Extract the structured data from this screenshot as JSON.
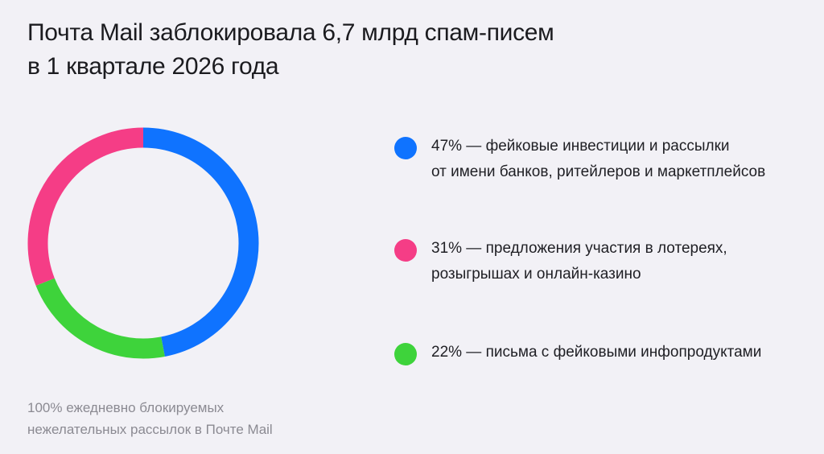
{
  "title": {
    "line1": "Почта Mail заблокировала 6,7 млрд спам-писем",
    "line2": "в 1 квартале 2026 года"
  },
  "legend": [
    {
      "line1": "47% — фейковые инвестиции и рассылки",
      "line2": "от имени банков, ритейлеров и маркетплейсов",
      "color": "#0f73ff"
    },
    {
      "line1": "31% — предложения участия в лотереях,",
      "line2": "розыгрышах и онлайн-казино",
      "color": "#f53d86"
    },
    {
      "line1": "22% — письма с фейковыми инфопродуктами",
      "line2": "",
      "color": "#3ed33b"
    }
  ],
  "footnote": {
    "line1": "100% ежедневно блокируемых",
    "line2": "нежелательных рассылок в Почте Mail"
  },
  "chart_data": {
    "type": "pie",
    "variant": "donut",
    "start": "top",
    "direction": "clockwise",
    "categories": [
      "фейковые инвестиции и рассылки от имени банков, ритейлеров и маркетплейсов",
      "предложения участия в лотереях, розыгрышах и онлайн-казино",
      "письма с фейковыми инфопродуктами"
    ],
    "values": [
      47,
      22,
      31
    ],
    "draw_order_colors": [
      "#0f73ff",
      "#3ed33b",
      "#f53d86"
    ],
    "unit": "%",
    "legend_position": "right"
  }
}
